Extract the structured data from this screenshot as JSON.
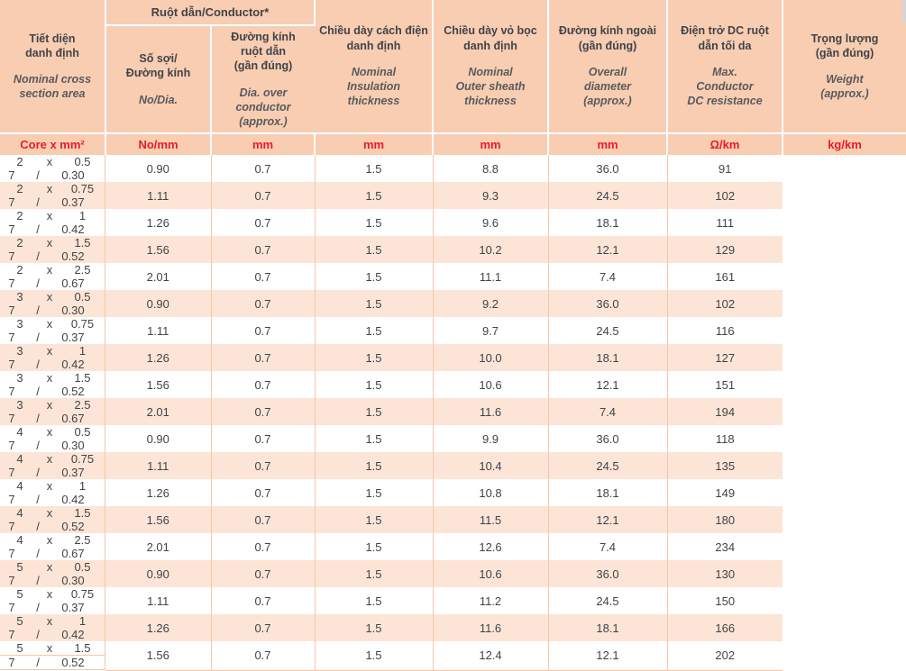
{
  "colors": {
    "header_bg": "#f8cdb2",
    "stripe_bg": "#fce5d6",
    "grid_line": "#f6c6a8",
    "unit_text": "#ec1b24",
    "dark_text": "#414349",
    "en_text": "#595a5e",
    "edge_artifact": "#d4d5d7"
  },
  "symbols": {
    "x": "x",
    "slash": "/"
  },
  "header": {
    "conductor_group": "Ruột dẫn/Conductor*",
    "columns": [
      {
        "id": "cross-section",
        "vi": "Tiết diện\ndanh định",
        "en": "Nominal cross\nsection area",
        "unit": "Core x mm²"
      },
      {
        "id": "no-dia",
        "vi": "Số sợi/\nĐường kính",
        "en": "No/Dia.",
        "unit": "No/mm"
      },
      {
        "id": "conductor-dia",
        "vi": "Đường kính\nruột dẫn\n(gần đúng)",
        "en": "Dia. over\nconductor\n(approx.)",
        "unit": "mm"
      },
      {
        "id": "insulation",
        "vi": "Chiều dày cách điện\ndanh định",
        "en": "Nominal\nInsulation\nthickness",
        "unit": "mm"
      },
      {
        "id": "sheath",
        "vi": "Chiều dày vỏ bọc\ndanh định",
        "en": "Nominal\nOuter sheath\nthickness",
        "unit": "mm"
      },
      {
        "id": "overall-dia",
        "vi": "Đường kính ngoài\n(gần đúng)",
        "en": "Overall\ndiameter\n(approx.)",
        "unit": "mm"
      },
      {
        "id": "dc-resistance",
        "vi": "Điện trở DC ruột\ndẫn tối da",
        "en": "Max.\nConductor\nDC resistance",
        "unit": "Ω/km"
      },
      {
        "id": "weight",
        "vi": "Trọng lượng\n(gần đúng)",
        "en": "Weight\n(approx.)",
        "unit": "kg/km"
      }
    ]
  },
  "rows": [
    {
      "cores": "2",
      "size": "0.5",
      "strands": "7",
      "dia": "0.30",
      "cond_dia": "0.90",
      "ins": "0.7",
      "sheath": "1.5",
      "od": "8.8",
      "res": "36.0",
      "weight": "91"
    },
    {
      "cores": "2",
      "size": "0.75",
      "strands": "7",
      "dia": "0.37",
      "cond_dia": "1.11",
      "ins": "0.7",
      "sheath": "1.5",
      "od": "9.3",
      "res": "24.5",
      "weight": "102"
    },
    {
      "cores": "2",
      "size": "1",
      "strands": "7",
      "dia": "0.42",
      "cond_dia": "1.26",
      "ins": "0.7",
      "sheath": "1.5",
      "od": "9.6",
      "res": "18.1",
      "weight": "111"
    },
    {
      "cores": "2",
      "size": "1.5",
      "strands": "7",
      "dia": "0.52",
      "cond_dia": "1.56",
      "ins": "0.7",
      "sheath": "1.5",
      "od": "10.2",
      "res": "12.1",
      "weight": "129"
    },
    {
      "cores": "2",
      "size": "2.5",
      "strands": "7",
      "dia": "0.67",
      "cond_dia": "2.01",
      "ins": "0.7",
      "sheath": "1.5",
      "od": "11.1",
      "res": "7.4",
      "weight": "161"
    },
    {
      "cores": "3",
      "size": "0.5",
      "strands": "7",
      "dia": "0.30",
      "cond_dia": "0.90",
      "ins": "0.7",
      "sheath": "1.5",
      "od": "9.2",
      "res": "36.0",
      "weight": "102"
    },
    {
      "cores": "3",
      "size": "0.75",
      "strands": "7",
      "dia": "0.37",
      "cond_dia": "1.11",
      "ins": "0.7",
      "sheath": "1.5",
      "od": "9.7",
      "res": "24.5",
      "weight": "116"
    },
    {
      "cores": "3",
      "size": "1",
      "strands": "7",
      "dia": "0.42",
      "cond_dia": "1.26",
      "ins": "0.7",
      "sheath": "1.5",
      "od": "10.0",
      "res": "18.1",
      "weight": "127"
    },
    {
      "cores": "3",
      "size": "1.5",
      "strands": "7",
      "dia": "0.52",
      "cond_dia": "1.56",
      "ins": "0.7",
      "sheath": "1.5",
      "od": "10.6",
      "res": "12.1",
      "weight": "151"
    },
    {
      "cores": "3",
      "size": "2.5",
      "strands": "7",
      "dia": "0.67",
      "cond_dia": "2.01",
      "ins": "0.7",
      "sheath": "1.5",
      "od": "11.6",
      "res": "7.4",
      "weight": "194"
    },
    {
      "cores": "4",
      "size": "0.5",
      "strands": "7",
      "dia": "0.30",
      "cond_dia": "0.90",
      "ins": "0.7",
      "sheath": "1.5",
      "od": "9.9",
      "res": "36.0",
      "weight": "118"
    },
    {
      "cores": "4",
      "size": "0.75",
      "strands": "7",
      "dia": "0.37",
      "cond_dia": "1.11",
      "ins": "0.7",
      "sheath": "1.5",
      "od": "10.4",
      "res": "24.5",
      "weight": "135"
    },
    {
      "cores": "4",
      "size": "1",
      "strands": "7",
      "dia": "0.42",
      "cond_dia": "1.26",
      "ins": "0.7",
      "sheath": "1.5",
      "od": "10.8",
      "res": "18.1",
      "weight": "149"
    },
    {
      "cores": "4",
      "size": "1.5",
      "strands": "7",
      "dia": "0.52",
      "cond_dia": "1.56",
      "ins": "0.7",
      "sheath": "1.5",
      "od": "11.5",
      "res": "12.1",
      "weight": "180"
    },
    {
      "cores": "4",
      "size": "2.5",
      "strands": "7",
      "dia": "0.67",
      "cond_dia": "2.01",
      "ins": "0.7",
      "sheath": "1.5",
      "od": "12.6",
      "res": "7.4",
      "weight": "234"
    },
    {
      "cores": "5",
      "size": "0.5",
      "strands": "7",
      "dia": "0.30",
      "cond_dia": "0.90",
      "ins": "0.7",
      "sheath": "1.5",
      "od": "10.6",
      "res": "36.0",
      "weight": "130"
    },
    {
      "cores": "5",
      "size": "0.75",
      "strands": "7",
      "dia": "0.37",
      "cond_dia": "1.11",
      "ins": "0.7",
      "sheath": "1.5",
      "od": "11.2",
      "res": "24.5",
      "weight": "150"
    },
    {
      "cores": "5",
      "size": "1",
      "strands": "7",
      "dia": "0.42",
      "cond_dia": "1.26",
      "ins": "0.7",
      "sheath": "1.5",
      "od": "11.6",
      "res": "18.1",
      "weight": "166"
    },
    {
      "cores": "5",
      "size": "1.5",
      "strands": "7",
      "dia": "0.52",
      "cond_dia": "1.56",
      "ins": "0.7",
      "sheath": "1.5",
      "od": "12.4",
      "res": "12.1",
      "weight": "202"
    }
  ]
}
